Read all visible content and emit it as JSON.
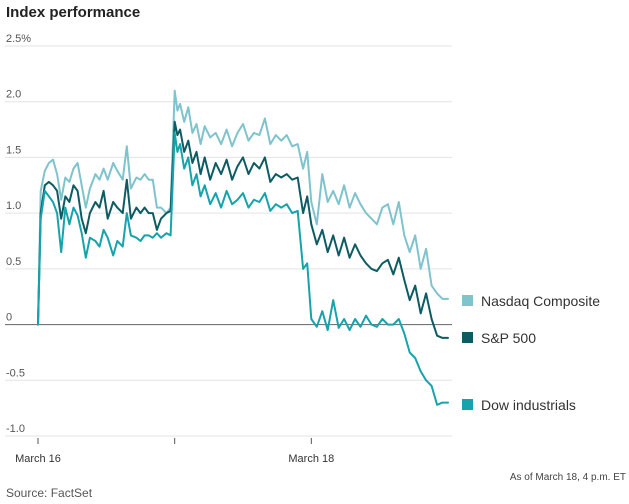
{
  "chart_data": {
    "type": "line",
    "title": "Index performance",
    "xlabel": "",
    "ylabel": "",
    "ylim": [
      -1.0,
      2.5
    ],
    "y_ticks": [
      {
        "value": 2.5,
        "label": "2.5%"
      },
      {
        "value": 2.0,
        "label": "2.0"
      },
      {
        "value": 1.5,
        "label": "1.5"
      },
      {
        "value": 1.0,
        "label": "1.0"
      },
      {
        "value": 0.5,
        "label": "0.5"
      },
      {
        "value": 0.0,
        "label": "0"
      },
      {
        "value": -0.5,
        "label": "-0.5"
      },
      {
        "value": -1.0,
        "label": "-1.0"
      }
    ],
    "x_domain": [
      0,
      3
    ],
    "x_ticks": [
      {
        "value": 0,
        "label": "March 16"
      },
      {
        "value": 1,
        "label": ""
      },
      {
        "value": 2,
        "label": "March 18"
      }
    ],
    "series": [
      {
        "name": "Nasdaq Composite",
        "color": "#7fc3cc",
        "x": [
          0,
          0.02,
          0.05,
          0.08,
          0.11,
          0.14,
          0.17,
          0.2,
          0.23,
          0.26,
          0.29,
          0.32,
          0.35,
          0.38,
          0.42,
          0.45,
          0.48,
          0.51,
          0.55,
          0.58,
          0.62,
          0.65,
          0.68,
          0.72,
          0.75,
          0.78,
          0.81,
          0.84,
          0.87,
          0.9,
          0.94,
          0.97,
          1.0,
          1.02,
          1.04,
          1.07,
          1.1,
          1.13,
          1.16,
          1.19,
          1.22,
          1.26,
          1.3,
          1.34,
          1.38,
          1.42,
          1.46,
          1.5,
          1.54,
          1.58,
          1.62,
          1.66,
          1.7,
          1.74,
          1.78,
          1.82,
          1.86,
          1.9,
          1.94,
          1.97,
          2.0,
          2.04,
          2.08,
          2.12,
          2.16,
          2.2,
          2.24,
          2.28,
          2.32,
          2.36,
          2.4,
          2.44,
          2.48,
          2.52,
          2.56,
          2.6,
          2.64,
          2.68,
          2.72,
          2.76,
          2.8,
          2.84,
          2.88,
          2.92,
          2.96,
          3.0
        ],
        "values": [
          0.0,
          1.2,
          1.38,
          1.45,
          1.48,
          1.35,
          1.12,
          1.32,
          1.28,
          1.4,
          1.45,
          1.25,
          1.05,
          1.22,
          1.35,
          1.3,
          1.4,
          1.3,
          1.45,
          1.38,
          1.3,
          1.6,
          1.22,
          1.32,
          1.3,
          1.35,
          1.3,
          1.3,
          1.05,
          1.05,
          1.0,
          1.05,
          2.1,
          1.92,
          1.98,
          1.82,
          1.95,
          1.72,
          1.8,
          1.62,
          1.78,
          1.68,
          1.72,
          1.62,
          1.75,
          1.6,
          1.72,
          1.8,
          1.65,
          1.72,
          1.7,
          1.85,
          1.62,
          1.7,
          1.65,
          1.7,
          1.6,
          1.62,
          1.4,
          1.55,
          1.1,
          0.9,
          1.35,
          1.1,
          1.2,
          1.08,
          1.25,
          1.05,
          1.18,
          1.08,
          1.0,
          0.95,
          0.9,
          1.05,
          1.08,
          0.9,
          1.1,
          0.8,
          0.65,
          0.8,
          0.5,
          0.68,
          0.35,
          0.28,
          0.23,
          0.23
        ]
      },
      {
        "name": "S&P 500",
        "color": "#0e5c63",
        "x": [
          0,
          0.02,
          0.05,
          0.08,
          0.11,
          0.14,
          0.17,
          0.2,
          0.23,
          0.26,
          0.29,
          0.32,
          0.35,
          0.38,
          0.42,
          0.45,
          0.48,
          0.51,
          0.55,
          0.58,
          0.62,
          0.65,
          0.68,
          0.72,
          0.75,
          0.78,
          0.81,
          0.84,
          0.87,
          0.9,
          0.94,
          0.97,
          1.0,
          1.02,
          1.04,
          1.07,
          1.1,
          1.13,
          1.16,
          1.19,
          1.22,
          1.26,
          1.3,
          1.34,
          1.38,
          1.42,
          1.46,
          1.5,
          1.54,
          1.58,
          1.62,
          1.66,
          1.7,
          1.74,
          1.78,
          1.82,
          1.86,
          1.9,
          1.94,
          1.97,
          2.0,
          2.04,
          2.08,
          2.12,
          2.16,
          2.2,
          2.24,
          2.28,
          2.32,
          2.36,
          2.4,
          2.44,
          2.48,
          2.52,
          2.56,
          2.6,
          2.64,
          2.68,
          2.72,
          2.76,
          2.8,
          2.84,
          2.88,
          2.92,
          2.96,
          3.0
        ],
        "values": [
          0.0,
          1.0,
          1.25,
          1.28,
          1.25,
          1.2,
          0.95,
          1.15,
          1.1,
          1.25,
          1.2,
          0.95,
          0.82,
          1.0,
          1.1,
          1.05,
          1.2,
          0.95,
          1.1,
          1.05,
          1.0,
          1.3,
          0.95,
          1.05,
          1.0,
          1.05,
          1.0,
          1.0,
          0.85,
          0.95,
          1.0,
          1.02,
          1.82,
          1.7,
          1.75,
          1.55,
          1.65,
          1.45,
          1.55,
          1.35,
          1.5,
          1.3,
          1.45,
          1.35,
          1.48,
          1.3,
          1.42,
          1.5,
          1.35,
          1.45,
          1.4,
          1.5,
          1.28,
          1.35,
          1.32,
          1.35,
          1.3,
          1.32,
          1.0,
          1.15,
          0.9,
          0.72,
          0.85,
          0.65,
          0.8,
          0.62,
          0.78,
          0.6,
          0.72,
          0.62,
          0.55,
          0.5,
          0.48,
          0.55,
          0.58,
          0.45,
          0.6,
          0.4,
          0.22,
          0.35,
          0.1,
          0.28,
          0.05,
          -0.1,
          -0.12,
          -0.12
        ]
      },
      {
        "name": "Dow industrials",
        "color": "#17a3ab",
        "x": [
          0,
          0.02,
          0.05,
          0.08,
          0.11,
          0.14,
          0.17,
          0.2,
          0.23,
          0.26,
          0.29,
          0.32,
          0.35,
          0.38,
          0.42,
          0.45,
          0.48,
          0.51,
          0.55,
          0.58,
          0.62,
          0.65,
          0.68,
          0.72,
          0.75,
          0.78,
          0.81,
          0.84,
          0.87,
          0.9,
          0.94,
          0.97,
          1.0,
          1.02,
          1.04,
          1.07,
          1.1,
          1.13,
          1.16,
          1.19,
          1.22,
          1.26,
          1.3,
          1.34,
          1.38,
          1.42,
          1.46,
          1.5,
          1.54,
          1.58,
          1.62,
          1.66,
          1.7,
          1.74,
          1.78,
          1.82,
          1.86,
          1.9,
          1.94,
          1.97,
          2.0,
          2.04,
          2.08,
          2.12,
          2.16,
          2.2,
          2.24,
          2.28,
          2.32,
          2.36,
          2.4,
          2.44,
          2.48,
          2.52,
          2.56,
          2.6,
          2.64,
          2.68,
          2.72,
          2.76,
          2.8,
          2.84,
          2.88,
          2.92,
          2.96,
          3.0
        ],
        "values": [
          0.0,
          0.95,
          1.2,
          1.15,
          1.1,
          1.0,
          0.65,
          1.05,
          0.9,
          1.05,
          0.98,
          0.82,
          0.6,
          0.78,
          0.75,
          0.7,
          0.85,
          0.78,
          0.62,
          0.75,
          0.7,
          1.0,
          0.8,
          0.78,
          0.75,
          0.8,
          0.8,
          0.78,
          0.82,
          0.78,
          0.82,
          0.8,
          1.72,
          1.55,
          1.62,
          1.4,
          1.5,
          1.25,
          1.35,
          1.15,
          1.25,
          1.08,
          1.18,
          1.05,
          1.2,
          1.08,
          1.12,
          1.18,
          1.05,
          1.12,
          1.1,
          1.18,
          1.02,
          1.08,
          1.05,
          1.08,
          1.0,
          1.02,
          0.5,
          0.55,
          0.05,
          -0.02,
          0.12,
          -0.05,
          0.22,
          -0.03,
          0.05,
          -0.05,
          0.05,
          -0.02,
          0.08,
          0.0,
          -0.02,
          0.05,
          0.0,
          0.0,
          0.05,
          -0.08,
          -0.25,
          -0.3,
          -0.42,
          -0.5,
          -0.55,
          -0.72,
          -0.7,
          -0.7
        ]
      }
    ]
  },
  "note": "As of March 18, 4 p.m. ET",
  "source": "Source: FactSet"
}
